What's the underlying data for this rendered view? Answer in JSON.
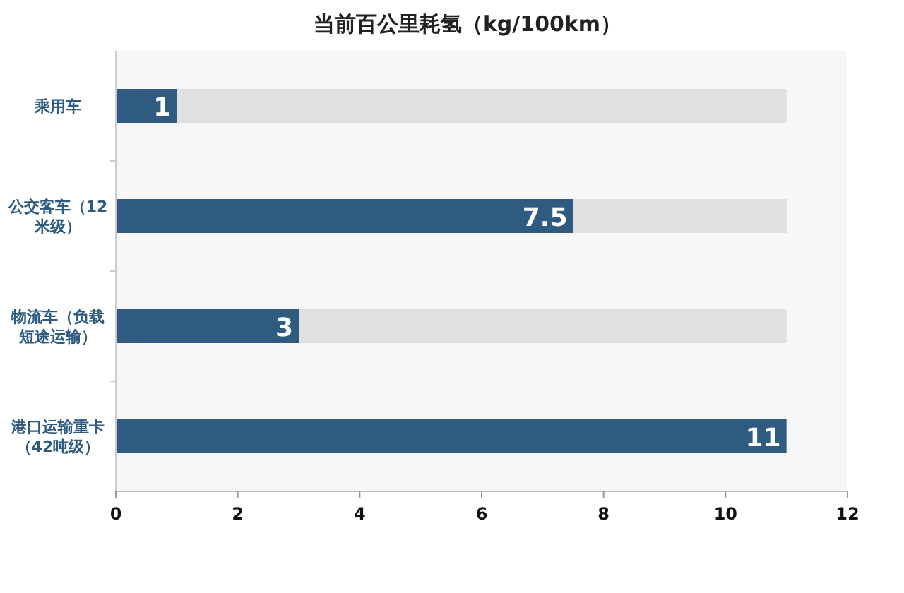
{
  "chart_data": {
    "type": "bar",
    "orientation": "horizontal",
    "title": "当前百公里耗氢（kg/100km）",
    "categories": [
      "乘用车",
      "公交客车（12米级）",
      "物流车（负载短途运输）",
      "港口运输重卡（42吨级）"
    ],
    "series": [
      {
        "color": "#2e5b7f",
        "values": [
          1,
          7.5,
          3,
          11
        ],
        "value_labels": [
          "1",
          "7.5",
          "3",
          "11"
        ]
      },
      {
        "color": "#e0e0e0",
        "values": [
          10,
          3.5,
          8,
          0
        ]
      }
    ],
    "stacked": true,
    "xlim": [
      0,
      12
    ],
    "xticks": [
      0,
      2,
      4,
      6,
      8,
      10,
      12
    ],
    "grid": false
  }
}
